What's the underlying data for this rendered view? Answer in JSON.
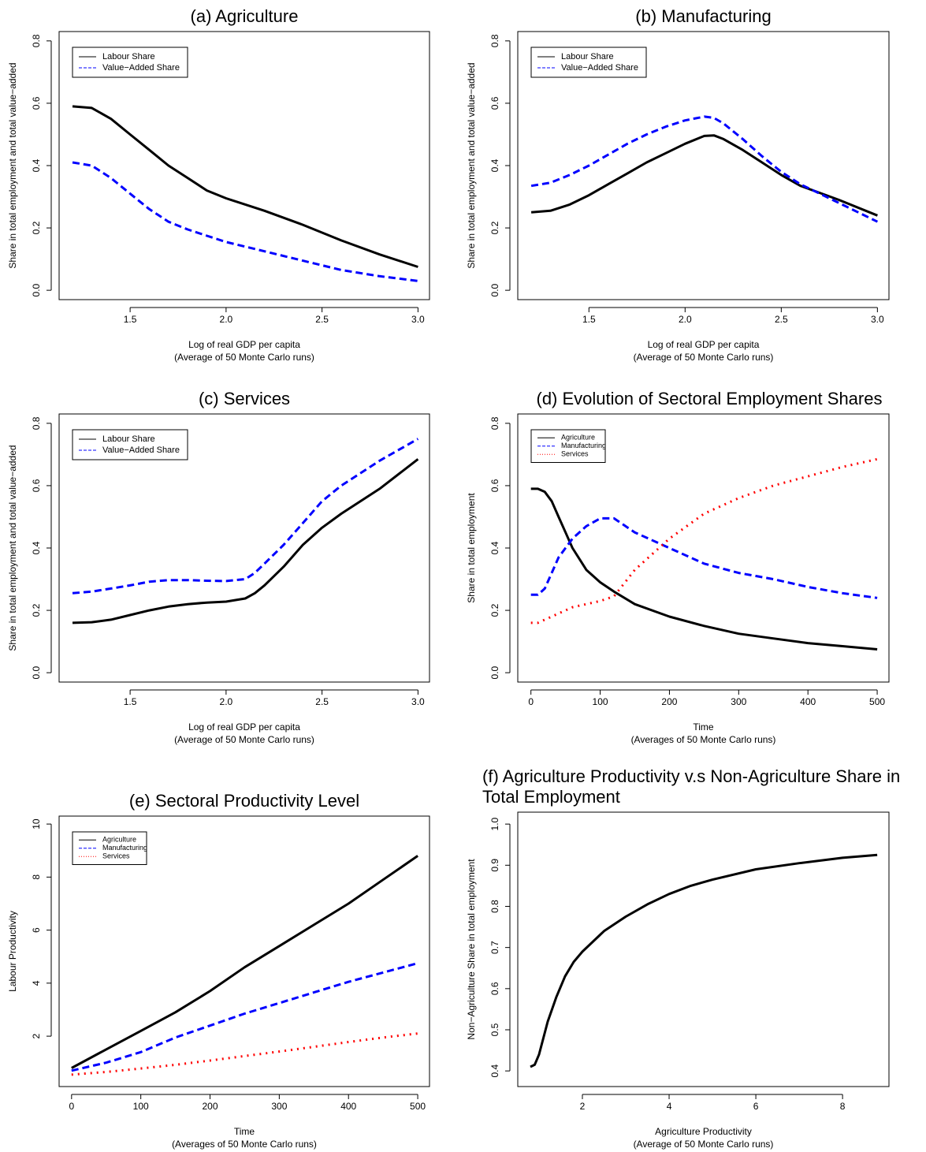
{
  "chart_data": [
    {
      "type": "line",
      "title": "(a) Agriculture",
      "xlabel": [
        "Log of real GDP per capita",
        "(Average of 50 Monte Carlo runs)"
      ],
      "ylabel": "Share in total employment and total value−added",
      "x": [
        1.2,
        1.3,
        1.4,
        1.5,
        1.6,
        1.7,
        1.8,
        1.9,
        2.0,
        2.2,
        2.4,
        2.6,
        2.8,
        3.0
      ],
      "series": [
        {
          "name": "Labour Share",
          "color": "#000000",
          "dash": "solid",
          "values": [
            0.59,
            0.585,
            0.55,
            0.5,
            0.45,
            0.4,
            0.36,
            0.32,
            0.295,
            0.255,
            0.21,
            0.16,
            0.115,
            0.075
          ]
        },
        {
          "name": "Value−Added Share",
          "color": "#0000ff",
          "dash": "dashed",
          "values": [
            0.41,
            0.4,
            0.36,
            0.31,
            0.26,
            0.22,
            0.195,
            0.175,
            0.155,
            0.125,
            0.095,
            0.065,
            0.045,
            0.03
          ]
        }
      ],
      "xlim": [
        1.13,
        3.06
      ],
      "ylim": [
        -0.03,
        0.83
      ],
      "xticks": [
        1.5,
        {
          "value": 2,
          "label": "2.0"
        },
        2.5,
        {
          "value": 3,
          "label": "3.0"
        }
      ],
      "yticks": [
        {
          "value": 0,
          "label": "0.0"
        },
        0.2,
        0.4,
        0.6,
        0.8
      ],
      "legend": "top-left"
    },
    {
      "type": "line",
      "title": "(b) Manufacturing",
      "xlabel": [
        "Log of real GDP per capita",
        "(Average of 50 Monte Carlo runs)"
      ],
      "ylabel": "Share in total employment and total value−added",
      "x": [
        1.2,
        1.3,
        1.4,
        1.5,
        1.6,
        1.7,
        1.8,
        1.9,
        2.0,
        2.1,
        2.15,
        2.2,
        2.3,
        2.4,
        2.5,
        2.6,
        2.8,
        3.0
      ],
      "series": [
        {
          "name": "Labour Share",
          "color": "#000000",
          "dash": "solid",
          "values": [
            0.25,
            0.255,
            0.275,
            0.305,
            0.34,
            0.375,
            0.41,
            0.44,
            0.47,
            0.495,
            0.497,
            0.485,
            0.45,
            0.41,
            0.37,
            0.335,
            0.29,
            0.24
          ]
        },
        {
          "name": "Value−Added Share",
          "color": "#0000ff",
          "dash": "dashed",
          "values": [
            0.335,
            0.345,
            0.37,
            0.4,
            0.435,
            0.47,
            0.5,
            0.525,
            0.545,
            0.557,
            0.553,
            0.535,
            0.485,
            0.43,
            0.38,
            0.34,
            0.28,
            0.22
          ]
        }
      ],
      "xlim": [
        1.13,
        3.06
      ],
      "ylim": [
        -0.03,
        0.83
      ],
      "xticks": [
        1.5,
        {
          "value": 2,
          "label": "2.0"
        },
        2.5,
        {
          "value": 3,
          "label": "3.0"
        }
      ],
      "yticks": [
        {
          "value": 0,
          "label": "0.0"
        },
        0.2,
        0.4,
        0.6,
        0.8
      ],
      "legend": "top-left"
    },
    {
      "type": "line",
      "title": "(c) Services",
      "xlabel": [
        "Log of real GDP per capita",
        "(Average of 50 Monte Carlo runs)"
      ],
      "ylabel": "Share in total employment and total value−added",
      "x": [
        1.2,
        1.3,
        1.4,
        1.5,
        1.6,
        1.7,
        1.8,
        1.9,
        2.0,
        2.1,
        2.15,
        2.2,
        2.3,
        2.4,
        2.5,
        2.6,
        2.8,
        3.0
      ],
      "series": [
        {
          "name": "Labour Share",
          "color": "#000000",
          "dash": "solid",
          "values": [
            0.16,
            0.162,
            0.17,
            0.185,
            0.2,
            0.212,
            0.22,
            0.225,
            0.228,
            0.238,
            0.255,
            0.28,
            0.34,
            0.41,
            0.465,
            0.51,
            0.59,
            0.685
          ]
        },
        {
          "name": "Value−Added Share",
          "color": "#0000ff",
          "dash": "dashed",
          "values": [
            0.255,
            0.26,
            0.27,
            0.28,
            0.292,
            0.297,
            0.297,
            0.295,
            0.294,
            0.3,
            0.32,
            0.35,
            0.41,
            0.48,
            0.55,
            0.6,
            0.68,
            0.75
          ]
        }
      ],
      "xlim": [
        1.13,
        3.06
      ],
      "ylim": [
        -0.03,
        0.83
      ],
      "xticks": [
        1.5,
        {
          "value": 2,
          "label": "2.0"
        },
        2.5,
        {
          "value": 3,
          "label": "3.0"
        }
      ],
      "yticks": [
        {
          "value": 0,
          "label": "0.0"
        },
        0.2,
        0.4,
        0.6,
        0.8
      ],
      "legend": "top-left"
    },
    {
      "type": "line",
      "title": "(d) Evolution of Sectoral Employment Shares",
      "xlabel": [
        "Time",
        "(Averages of 50 Monte Carlo runs)"
      ],
      "ylabel": "Share in total employment",
      "x": [
        0,
        10,
        20,
        30,
        40,
        50,
        60,
        80,
        100,
        120,
        150,
        200,
        250,
        300,
        350,
        400,
        450,
        500
      ],
      "series": [
        {
          "name": "Agriculture",
          "color": "#000000",
          "dash": "solid",
          "values": [
            0.59,
            0.59,
            0.58,
            0.55,
            0.5,
            0.45,
            0.4,
            0.33,
            0.29,
            0.26,
            0.22,
            0.18,
            0.15,
            0.125,
            0.11,
            0.095,
            0.085,
            0.075
          ]
        },
        {
          "name": "Manufacturing",
          "color": "#0000ff",
          "dash": "dashed",
          "values": [
            0.25,
            0.25,
            0.27,
            0.32,
            0.37,
            0.4,
            0.43,
            0.47,
            0.495,
            0.495,
            0.45,
            0.4,
            0.35,
            0.32,
            0.3,
            0.275,
            0.255,
            0.24
          ]
        },
        {
          "name": "Services",
          "color": "#ff0000",
          "dash": "dotted",
          "values": [
            0.16,
            0.16,
            0.17,
            0.18,
            0.19,
            0.2,
            0.21,
            0.22,
            0.23,
            0.245,
            0.33,
            0.43,
            0.51,
            0.56,
            0.6,
            0.63,
            0.66,
            0.685
          ]
        }
      ],
      "xlim": [
        -19,
        517
      ],
      "ylim": [
        -0.03,
        0.83
      ],
      "xticks": [
        0,
        100,
        200,
        300,
        400,
        500
      ],
      "yticks": [
        {
          "value": 0,
          "label": "0.0"
        },
        0.2,
        0.4,
        0.6,
        0.8
      ],
      "legend": "top-left"
    },
    {
      "type": "line",
      "title": "(e) Sectoral Productivity Level",
      "xlabel": [
        "Time",
        "(Averages of 50 Monte Carlo runs)"
      ],
      "ylabel": "Labour Productivity",
      "x": [
        0,
        50,
        100,
        150,
        200,
        250,
        300,
        350,
        400,
        450,
        500
      ],
      "series": [
        {
          "name": "Agriculture",
          "color": "#000000",
          "dash": "solid",
          "values": [
            0.8,
            1.5,
            2.2,
            2.9,
            3.7,
            4.6,
            5.4,
            6.2,
            7.0,
            7.9,
            8.8
          ]
        },
        {
          "name": "Manufacturing",
          "color": "#0000ff",
          "dash": "dashed",
          "values": [
            0.7,
            1.0,
            1.4,
            1.95,
            2.4,
            2.85,
            3.25,
            3.65,
            4.05,
            4.4,
            4.75
          ]
        },
        {
          "name": "Services",
          "color": "#ff0000",
          "dash": "dotted",
          "values": [
            0.55,
            0.65,
            0.78,
            0.92,
            1.08,
            1.25,
            1.42,
            1.6,
            1.78,
            1.95,
            2.1
          ]
        }
      ],
      "xlim": [
        -18,
        517
      ],
      "ylim": [
        0.1,
        10.3
      ],
      "xticks": [
        0,
        100,
        200,
        300,
        400,
        500
      ],
      "yticks": [
        2,
        4,
        6,
        8,
        10
      ],
      "legend": "top-left"
    },
    {
      "type": "line",
      "title": "(f) Agriculture Productivity v.s Non-Agriculture Share in Total Employment",
      "xlabel": [
        "Agriculture Productivity",
        "(Average of 50 Monte Carlo runs)"
      ],
      "ylabel": "Non−Agriculture Share in total employment",
      "x": [
        0.8,
        0.9,
        1.0,
        1.2,
        1.4,
        1.6,
        1.8,
        2.0,
        2.5,
        3.0,
        3.5,
        4.0,
        4.5,
        5.0,
        6.0,
        7.0,
        8.0,
        8.8
      ],
      "series": [
        {
          "color": "#000000",
          "dash": "solid",
          "values": [
            0.41,
            0.415,
            0.44,
            0.52,
            0.58,
            0.63,
            0.665,
            0.69,
            0.74,
            0.775,
            0.805,
            0.83,
            0.85,
            0.865,
            0.89,
            0.905,
            0.918,
            0.925
          ]
        }
      ],
      "xlim": [
        0.51,
        9.07
      ],
      "ylim": [
        0.362,
        1.029
      ],
      "xticks": [
        2,
        4,
        6,
        8
      ],
      "yticks": [
        0.4,
        0.5,
        0.6,
        0.7,
        0.8,
        0.9,
        {
          "value": 1,
          "label": "1.0"
        }
      ]
    }
  ]
}
